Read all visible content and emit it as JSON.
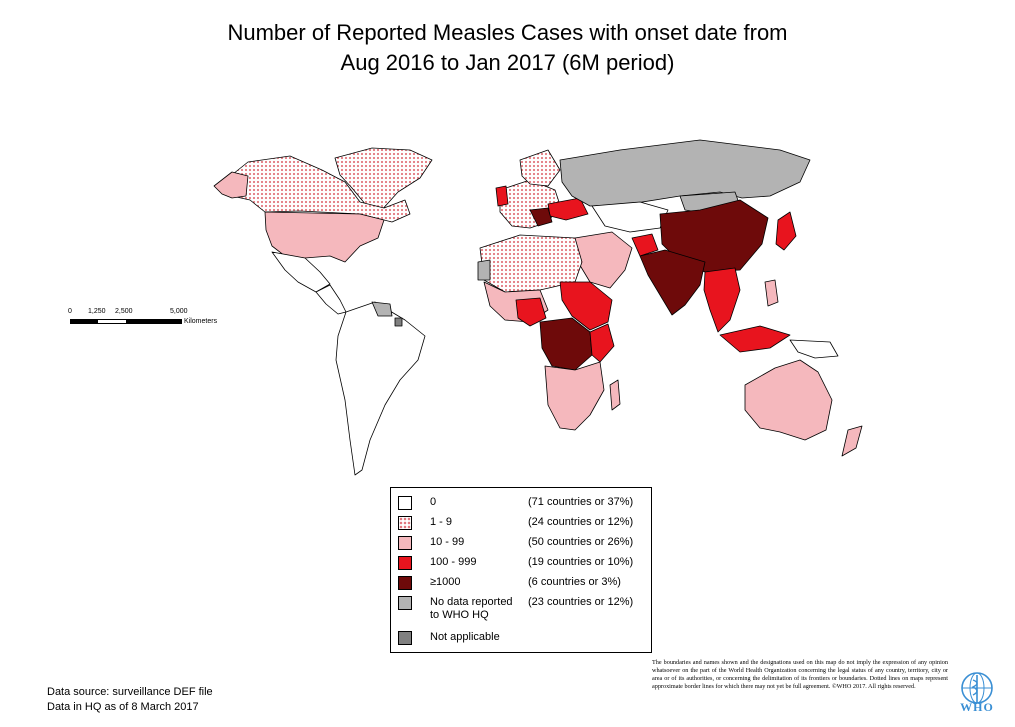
{
  "title": {
    "line1": "Number of Reported Measles Cases with onset date from",
    "line2": "Aug 2016 to Jan 2017 (6M period)"
  },
  "colors": {
    "zero": "#ffffff",
    "one_to_nine_dots": "#e2787f",
    "ten_to_99": "#f5b8bd",
    "hundred_to_999": "#e8141e",
    "thousand_plus": "#6e0a0a",
    "no_data": "#b3b3b3",
    "not_applicable": "#808080",
    "outline": "#000000"
  },
  "scale_bar": {
    "ticks": [
      "0",
      "1,250",
      "2,500",
      "5,000"
    ],
    "unit": "Kilometers"
  },
  "legend": {
    "items": [
      {
        "range": "0",
        "count": "(71 countries or 37%)",
        "category": "zero"
      },
      {
        "range": "1 - 9",
        "count": "(24 countries or 12%)",
        "category": "one_to_nine"
      },
      {
        "range": "10 - 99",
        "count": "(50 countries or 26%)",
        "category": "ten_to_99"
      },
      {
        "range": "100 - 999",
        "count": "(19 countries or 10%)",
        "category": "hundred_to_999"
      },
      {
        "range": "≥1000",
        "count": "(6 countries or 3%)",
        "category": "thousand_plus"
      },
      {
        "range_line1": "No data reported",
        "range_line2": "to WHO HQ",
        "count": "(23 countries or 12%)",
        "category": "no_data"
      },
      {
        "range": "Not applicable",
        "category": "not_applicable"
      }
    ]
  },
  "source": {
    "line1": "Data source: surveillance DEF file",
    "line2": "Data in HQ as of 8 March 2017"
  },
  "disclaimer": "The boundaries and names shown and the designations used on this map do not imply the expression of any opinion whatsoever on the part of the World Health Organization concerning the legal status of any country, territory, city or area or of its authorities, or concerning the delimitation of its frontiers or boundaries.  Dotted lines on maps represent approximate border lines for which there may not yet be full agreement. ©WHO 2017. All rights reserved.",
  "logo": {
    "text": "WHO"
  }
}
